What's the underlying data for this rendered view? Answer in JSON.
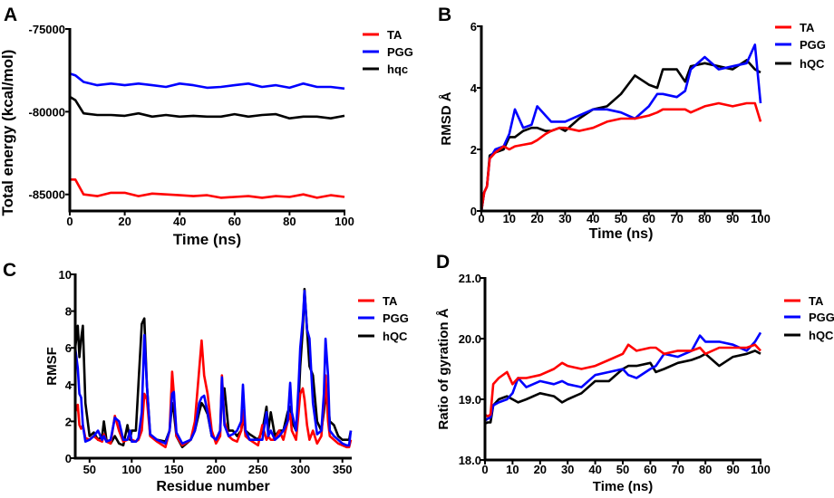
{
  "colors": {
    "TA": "#ff0000",
    "PGG": "#0000ff",
    "hQC": "#000000"
  },
  "chart_data": [
    {
      "panel": "A",
      "type": "line",
      "xlabel": "Time (ns)",
      "ylabel": "Total energy (kcal/mol)",
      "xlim": [
        0,
        100
      ],
      "ylim": [
        -86000,
        -75000
      ],
      "xticks": [
        0,
        20,
        40,
        60,
        80,
        100
      ],
      "yticks": [
        -85000,
        -80000,
        -75000
      ],
      "legend_position": "top-right",
      "x": [
        0,
        2,
        5,
        10,
        15,
        20,
        25,
        30,
        35,
        40,
        45,
        50,
        55,
        60,
        65,
        70,
        75,
        80,
        85,
        90,
        95,
        100
      ],
      "series": [
        {
          "name": "TA",
          "color": "#ff0000",
          "values": [
            -84100,
            -84100,
            -85000,
            -85100,
            -84900,
            -84900,
            -85100,
            -84950,
            -85000,
            -85050,
            -85100,
            -85050,
            -85200,
            -85150,
            -85100,
            -85200,
            -85100,
            -85150,
            -85000,
            -85200,
            -85050,
            -85150
          ]
        },
        {
          "name": "PGG",
          "color": "#0000ff",
          "values": [
            -77700,
            -77800,
            -78200,
            -78400,
            -78300,
            -78400,
            -78300,
            -78400,
            -78500,
            -78300,
            -78400,
            -78550,
            -78500,
            -78400,
            -78300,
            -78500,
            -78400,
            -78550,
            -78300,
            -78500,
            -78500,
            -78600
          ]
        },
        {
          "name": "hqc",
          "color": "#000000",
          "values": [
            -79100,
            -79300,
            -80100,
            -80200,
            -80200,
            -80250,
            -80100,
            -80300,
            -80200,
            -80300,
            -80250,
            -80300,
            -80300,
            -80150,
            -80300,
            -80200,
            -80150,
            -80400,
            -80300,
            -80300,
            -80400,
            -80250
          ]
        }
      ]
    },
    {
      "panel": "B",
      "type": "line",
      "xlabel": "Time (ns)",
      "ylabel": "RMSD Å",
      "xlim": [
        0,
        100
      ],
      "ylim": [
        0,
        6
      ],
      "xticks": [
        0,
        10,
        20,
        30,
        40,
        50,
        60,
        70,
        80,
        90,
        100
      ],
      "yticks": [
        0,
        2,
        4,
        6
      ],
      "legend_position": "top-right",
      "x": [
        0,
        1,
        2,
        3,
        5,
        8,
        10,
        12,
        15,
        18,
        20,
        23,
        25,
        28,
        30,
        35,
        40,
        45,
        50,
        55,
        60,
        63,
        65,
        70,
        73,
        75,
        80,
        85,
        90,
        95,
        98,
        100
      ],
      "series": [
        {
          "name": "hQC",
          "color": "#000000",
          "values": [
            0,
            0.6,
            0.8,
            1.8,
            1.9,
            2.0,
            2.4,
            2.4,
            2.6,
            2.7,
            2.7,
            2.6,
            2.6,
            2.7,
            2.6,
            3.0,
            3.3,
            3.4,
            3.8,
            4.4,
            4.1,
            4.0,
            4.6,
            4.6,
            4.2,
            4.7,
            4.8,
            4.7,
            4.6,
            4.9,
            4.6,
            4.5
          ]
        },
        {
          "name": "PGG",
          "color": "#0000ff",
          "values": [
            0,
            0.6,
            0.8,
            1.7,
            2.0,
            2.1,
            2.5,
            3.3,
            2.7,
            2.8,
            3.4,
            3.1,
            2.9,
            2.9,
            2.9,
            3.1,
            3.3,
            3.3,
            3.2,
            3.0,
            3.4,
            3.8,
            3.8,
            3.7,
            3.9,
            4.6,
            5.0,
            4.6,
            4.7,
            4.8,
            5.4,
            3.5
          ]
        },
        {
          "name": "TA",
          "color": "#ff0000",
          "values": [
            0,
            0.6,
            0.8,
            1.7,
            1.9,
            2.1,
            2.0,
            2.1,
            2.15,
            2.2,
            2.3,
            2.5,
            2.6,
            2.7,
            2.7,
            2.6,
            2.7,
            2.9,
            3.0,
            3.0,
            3.1,
            3.2,
            3.3,
            3.3,
            3.3,
            3.2,
            3.4,
            3.5,
            3.4,
            3.5,
            3.5,
            2.9
          ]
        }
      ],
      "legend_order": [
        "TA",
        "PGG",
        "hQC"
      ]
    },
    {
      "panel": "C",
      "type": "line",
      "xlabel": "Residue number",
      "ylabel": "RMSF",
      "xlim": [
        33,
        360
      ],
      "ylim": [
        0,
        10
      ],
      "xticks": [
        50,
        100,
        150,
        200,
        250,
        300,
        350
      ],
      "yticks": [
        0,
        2,
        4,
        6,
        8,
        10
      ],
      "legend_position": "right",
      "x": [
        33,
        36,
        38,
        40,
        42,
        45,
        50,
        55,
        60,
        65,
        67,
        70,
        75,
        80,
        85,
        90,
        95,
        98,
        100,
        105,
        108,
        112,
        115,
        118,
        122,
        130,
        140,
        145,
        148,
        150,
        153,
        160,
        170,
        175,
        180,
        183,
        186,
        190,
        195,
        200,
        205,
        207,
        210,
        215,
        220,
        225,
        230,
        232,
        235,
        240,
        250,
        255,
        260,
        262,
        265,
        270,
        275,
        280,
        285,
        288,
        290,
        295,
        298,
        300,
        303,
        305,
        308,
        311,
        315,
        320,
        325,
        328,
        330,
        333,
        335,
        340,
        345,
        350,
        355,
        358,
        360
      ],
      "series": [
        {
          "name": "hQC",
          "color": "#000000",
          "values": [
            6.0,
            7.2,
            5.5,
            6.5,
            7.2,
            3.0,
            1.2,
            1.4,
            1.0,
            1.2,
            2.0,
            1.0,
            0.8,
            1.2,
            0.8,
            0.7,
            1.8,
            1.0,
            1.5,
            1.5,
            4.0,
            7.3,
            7.6,
            4.0,
            1.2,
            1.0,
            0.9,
            1.5,
            3.0,
            2.5,
            1.2,
            0.6,
            1.0,
            1.5,
            2.5,
            3.0,
            2.8,
            2.4,
            1.2,
            1.0,
            1.5,
            3.5,
            3.8,
            1.5,
            1.5,
            1.2,
            1.5,
            2.2,
            1.5,
            1.3,
            1.0,
            1.5,
            2.8,
            1.5,
            2.5,
            1.2,
            1.5,
            1.5,
            2.5,
            2.8,
            2.0,
            1.5,
            3.0,
            5.0,
            7.0,
            9.2,
            7.0,
            5.0,
            4.5,
            2.0,
            1.5,
            2.5,
            3.5,
            3.0,
            2.0,
            1.8,
            1.2,
            1.0,
            1.0,
            1.0,
            1.5
          ]
        },
        {
          "name": "TA",
          "color": "#ff0000",
          "values": [
            2.5,
            2.9,
            1.8,
            1.6,
            1.8,
            1.1,
            1.0,
            1.2,
            1.0,
            0.9,
            1.3,
            0.9,
            0.8,
            2.3,
            1.5,
            0.9,
            1.0,
            1.2,
            1.0,
            0.9,
            1.0,
            1.5,
            3.5,
            3.2,
            1.2,
            0.9,
            0.6,
            1.5,
            4.7,
            3.5,
            1.2,
            0.7,
            1.0,
            2.0,
            4.8,
            6.4,
            4.5,
            3.5,
            1.5,
            0.8,
            1.2,
            4.5,
            2.0,
            1.2,
            1.0,
            0.9,
            1.5,
            2.6,
            1.2,
            1.0,
            0.7,
            1.8,
            1.0,
            1.2,
            1.0,
            1.0,
            1.5,
            1.0,
            2.0,
            2.4,
            1.5,
            1.0,
            2.5,
            3.5,
            3.8,
            3.2,
            1.8,
            1.0,
            1.5,
            0.8,
            1.2,
            3.0,
            4.5,
            2.0,
            1.2,
            1.0,
            0.8,
            0.7,
            0.6,
            0.6,
            1.0
          ]
        },
        {
          "name": "PGG",
          "color": "#0000ff",
          "values": [
            6.0,
            4.9,
            3.5,
            3.3,
            1.8,
            0.9,
            1.0,
            1.2,
            1.5,
            1.0,
            1.2,
            0.9,
            1.0,
            2.2,
            2.0,
            1.0,
            1.0,
            1.5,
            0.9,
            0.9,
            1.1,
            2.5,
            6.7,
            4.0,
            1.3,
            1.0,
            0.8,
            1.5,
            3.5,
            3.6,
            1.4,
            0.8,
            1.0,
            1.5,
            3.0,
            3.3,
            3.4,
            2.5,
            1.2,
            1.0,
            1.5,
            4.4,
            1.8,
            1.2,
            1.3,
            1.5,
            2.0,
            4.0,
            1.5,
            1.0,
            1.0,
            1.0,
            2.5,
            1.2,
            1.5,
            1.0,
            1.2,
            1.5,
            2.0,
            4.1,
            2.5,
            1.5,
            4.0,
            6.0,
            7.5,
            9.1,
            7.0,
            6.5,
            3.0,
            1.3,
            1.5,
            3.5,
            6.5,
            4.5,
            1.5,
            1.2,
            1.0,
            0.8,
            0.7,
            0.7,
            1.5
          ]
        }
      ],
      "legend_order": [
        "TA",
        "PGG",
        "hQC"
      ]
    },
    {
      "panel": "D",
      "type": "line",
      "xlabel": "Time (ns)",
      "ylabel": "Ratio of gyration Å",
      "xlim": [
        0,
        100
      ],
      "ylim": [
        18.0,
        21.0
      ],
      "xticks": [
        0,
        10,
        20,
        30,
        40,
        50,
        60,
        70,
        80,
        90,
        100
      ],
      "yticks": [
        "18.0",
        "19.0",
        "20.0",
        "21.0"
      ],
      "legend_position": "right",
      "x": [
        0,
        1,
        2,
        3,
        5,
        8,
        10,
        12,
        15,
        20,
        25,
        28,
        30,
        35,
        40,
        45,
        50,
        52,
        55,
        60,
        62,
        65,
        70,
        75,
        78,
        80,
        85,
        90,
        95,
        98,
        100
      ],
      "series": [
        {
          "name": "hQC",
          "color": "#000000",
          "values": [
            18.6,
            18.62,
            18.62,
            18.9,
            19.0,
            19.05,
            19.0,
            18.95,
            19.0,
            19.1,
            19.05,
            18.95,
            19.0,
            19.1,
            19.3,
            19.3,
            19.5,
            19.55,
            19.55,
            19.6,
            19.45,
            19.5,
            19.6,
            19.65,
            19.7,
            19.75,
            19.55,
            19.7,
            19.75,
            19.8,
            19.75
          ]
        },
        {
          "name": "PGG",
          "color": "#0000ff",
          "values": [
            18.65,
            18.68,
            18.7,
            18.9,
            18.95,
            19.0,
            19.1,
            19.35,
            19.2,
            19.3,
            19.25,
            19.3,
            19.25,
            19.2,
            19.4,
            19.45,
            19.5,
            19.4,
            19.35,
            19.5,
            19.55,
            19.75,
            19.7,
            19.8,
            20.05,
            19.95,
            19.95,
            19.9,
            19.8,
            19.95,
            20.1
          ]
        },
        {
          "name": "TA",
          "color": "#ff0000",
          "values": [
            18.75,
            18.72,
            18.75,
            19.25,
            19.35,
            19.45,
            19.25,
            19.35,
            19.35,
            19.4,
            19.5,
            19.6,
            19.55,
            19.5,
            19.55,
            19.65,
            19.75,
            19.9,
            19.8,
            19.85,
            19.85,
            19.75,
            19.8,
            19.8,
            19.85,
            19.75,
            19.85,
            19.85,
            19.85,
            19.9,
            19.8
          ]
        }
      ],
      "legend_order": [
        "TA",
        "PGG",
        "hQC"
      ]
    }
  ]
}
